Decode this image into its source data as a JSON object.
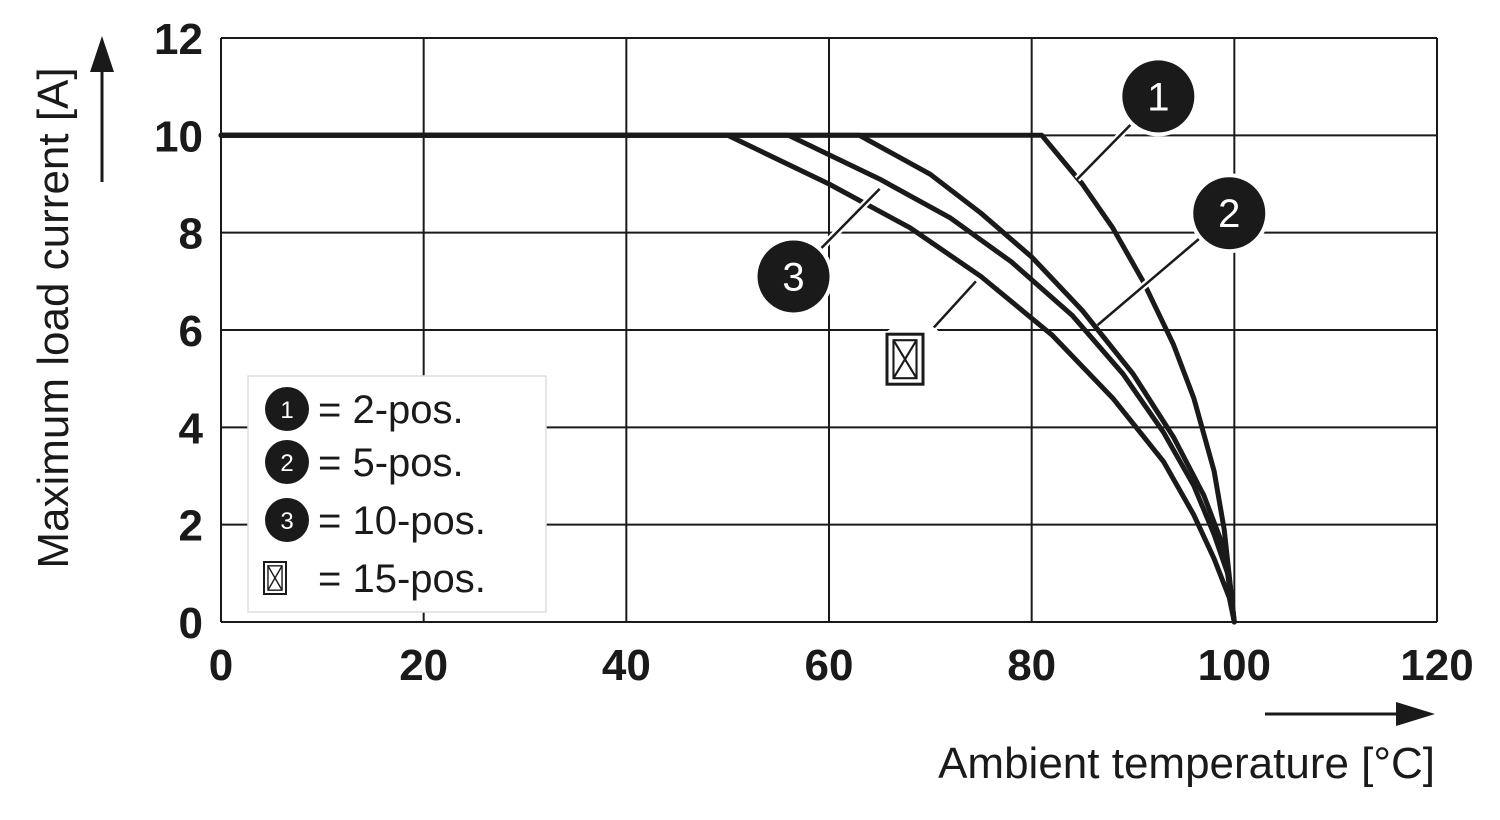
{
  "chart_data": {
    "type": "line",
    "xlabel": "Ambient temperature [°C]",
    "ylabel": "Maximum load current [A]",
    "xlim": [
      0,
      120
    ],
    "ylim": [
      0,
      12
    ],
    "xticks": [
      "0",
      "20",
      "40",
      "60",
      "80",
      "100",
      "120"
    ],
    "yticks": [
      "0",
      "2",
      "4",
      "6",
      "8",
      "10",
      "12"
    ],
    "grid": true,
    "legend_position": "bottom-left",
    "series": [
      {
        "name": "1",
        "marker": "1",
        "legend_label": "= 2-pos.",
        "x": [
          0,
          81,
          85,
          88,
          91,
          94,
          96,
          98,
          99,
          100
        ],
        "y": [
          10,
          10,
          9,
          8.1,
          7.0,
          5.7,
          4.6,
          3.1,
          1.9,
          0
        ]
      },
      {
        "name": "2",
        "marker": "2",
        "legend_label": "= 5-pos.",
        "x": [
          0,
          63,
          70,
          75,
          80,
          85,
          90,
          94,
          97,
          99,
          100
        ],
        "y": [
          10,
          10,
          9.2,
          8.4,
          7.5,
          6.4,
          5.1,
          3.8,
          2.6,
          1.5,
          0
        ]
      },
      {
        "name": "3",
        "marker": "3",
        "legend_label": "= 10-pos.",
        "x": [
          0,
          56,
          65,
          72,
          78,
          84,
          89,
          93,
          96,
          98,
          99.5,
          100
        ],
        "y": [
          10,
          10,
          9.1,
          8.3,
          7.4,
          6.3,
          5.1,
          3.9,
          2.8,
          1.8,
          0.9,
          0
        ]
      },
      {
        "name": "15-pos.",
        "marker": "box",
        "legend_label": "= 15-pos.",
        "x": [
          0,
          50,
          60,
          68,
          75,
          82,
          88,
          93,
          96,
          98,
          99.5,
          100
        ],
        "y": [
          10,
          10,
          9.0,
          8.1,
          7.1,
          5.9,
          4.6,
          3.3,
          2.2,
          1.3,
          0.5,
          0
        ]
      }
    ],
    "callouts": [
      {
        "marker": "1",
        "label": "1",
        "anchor_x": 84.5,
        "anchor_y": 9.1,
        "circle_x": 92.5,
        "circle_y": 10.8
      },
      {
        "marker": "2",
        "label": "2",
        "anchor_x": 86.5,
        "anchor_y": 6.1,
        "circle_x": 99.5,
        "circle_y": 8.4
      },
      {
        "marker": "3",
        "label": "3",
        "anchor_x": 65,
        "anchor_y": 8.9,
        "circle_x": 56.5,
        "circle_y": 7.1
      },
      {
        "marker": "box",
        "label": "",
        "anchor_x": 74.5,
        "anchor_y": 7.0,
        "circle_x": 67.5,
        "circle_y": 5.4
      }
    ]
  }
}
